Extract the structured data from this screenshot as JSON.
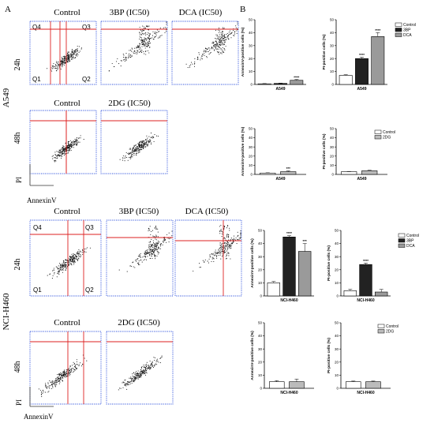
{
  "panel_letters": [
    "A",
    "B"
  ],
  "a549": {
    "cell_line": "A549",
    "row24": {
      "time": "24h",
      "plots": [
        "Control",
        "3BP (IC50)",
        "DCA (IC50)"
      ]
    },
    "row48": {
      "time": "48h",
      "plots": [
        "Control",
        "2DG (IC50)"
      ]
    },
    "quadrants": [
      "Q4",
      "Q3",
      "Q1",
      "Q2"
    ],
    "y_axis": "PI",
    "x_axis": "AnnexinV"
  },
  "h460": {
    "cell_line": "NCI-H460",
    "row24": {
      "time": "24h",
      "plots": [
        "Control",
        "3BP (IC50)",
        "DCA (IC50)"
      ]
    },
    "row48": {
      "time": "48h",
      "plots": [
        "Control",
        "2DG (IC50)"
      ]
    },
    "quadrants": [
      "Q4",
      "Q3",
      "Q1",
      "Q2"
    ],
    "y_axis": "PI",
    "x_axis": "AnnexinV"
  },
  "chart_data": [
    {
      "type": "bar",
      "id": "a549-24h-annexin",
      "categories": [
        "Control",
        "3BP",
        "DCA"
      ],
      "values": [
        0.5,
        0.8,
        3.2
      ],
      "errors": [
        0.2,
        0.2,
        0.6
      ],
      "significance": [
        "",
        "",
        "****"
      ],
      "xlabel": "A549",
      "ylabel": "AnnexinV-positive cells (%)",
      "ylim": [
        0,
        50
      ],
      "yticks": [
        0,
        10,
        20,
        30,
        40,
        50
      ],
      "colors": [
        "#ffffff",
        "#222222",
        "#9a9a9a"
      ],
      "grid": false
    },
    {
      "type": "bar",
      "id": "a549-24h-pi",
      "categories": [
        "Control",
        "3BP",
        "DCA"
      ],
      "values": [
        7,
        20,
        37
      ],
      "errors": [
        0.5,
        1,
        3
      ],
      "significance": [
        "",
        "****",
        "****"
      ],
      "xlabel": "A549",
      "ylabel": "PI-positive cells (%)",
      "ylim": [
        0,
        50
      ],
      "yticks": [
        0,
        10,
        20,
        30,
        40,
        50
      ],
      "colors": [
        "#ffffff",
        "#222222",
        "#9a9a9a"
      ],
      "legend": [
        "Control",
        "3BP",
        "DCA"
      ],
      "legend_position": "right",
      "grid": false
    },
    {
      "type": "bar",
      "id": "a549-48h-annexin",
      "categories": [
        "Control",
        "2DG"
      ],
      "values": [
        1.5,
        3
      ],
      "errors": [
        0.3,
        0.8
      ],
      "significance": [
        "",
        "***"
      ],
      "xlabel": "A549",
      "ylabel": "AnnexinV-positive cells (%)",
      "ylim": [
        0,
        50
      ],
      "yticks": [
        0,
        10,
        20,
        30,
        40,
        50
      ],
      "colors": [
        "#ffffff",
        "#bbbbbb"
      ],
      "grid": false
    },
    {
      "type": "bar",
      "id": "a549-48h-pi",
      "categories": [
        "Control",
        "2DG"
      ],
      "values": [
        3,
        4
      ],
      "errors": [
        0.3,
        0.5
      ],
      "significance": [
        "",
        ""
      ],
      "xlabel": "A549",
      "ylabel": "PI-positive cells (%)",
      "ylim": [
        0,
        50
      ],
      "yticks": [
        0,
        10,
        20,
        30,
        40,
        50
      ],
      "colors": [
        "#ffffff",
        "#bbbbbb"
      ],
      "legend": [
        "Control",
        "2DG"
      ],
      "legend_position": "left",
      "grid": false
    },
    {
      "type": "bar",
      "id": "h460-24h-annexin",
      "categories": [
        "Control",
        "3BP",
        "DCA"
      ],
      "values": [
        10,
        45,
        34
      ],
      "errors": [
        1,
        1,
        6
      ],
      "significance": [
        "",
        "****",
        "***"
      ],
      "xlabel": "NCI-H460",
      "ylabel": "AnnexinV-positive cells (%)",
      "ylim": [
        0,
        50
      ],
      "yticks": [
        0,
        10,
        20,
        30,
        40,
        50
      ],
      "colors": [
        "#ffffff",
        "#222222",
        "#9a9a9a"
      ],
      "grid": false
    },
    {
      "type": "bar",
      "id": "h460-24h-pi",
      "categories": [
        "Control",
        "3BP",
        "DCA"
      ],
      "values": [
        4,
        24,
        3
      ],
      "errors": [
        1,
        1,
        2
      ],
      "significance": [
        "",
        "****",
        ""
      ],
      "xlabel": "NCI-H460",
      "ylabel": "PI-positive cells (%)",
      "ylim": [
        0,
        50
      ],
      "yticks": [
        0,
        10,
        20,
        30,
        40,
        50
      ],
      "colors": [
        "#ffffff",
        "#222222",
        "#9a9a9a"
      ],
      "legend": [
        "Control",
        "3BP",
        "DCA"
      ],
      "legend_position": "right",
      "grid": false
    },
    {
      "type": "bar",
      "id": "h460-48h-annexin",
      "categories": [
        "Control",
        "2DG"
      ],
      "values": [
        5,
        5
      ],
      "errors": [
        0.8,
        2
      ],
      "significance": [
        "",
        ""
      ],
      "xlabel": "NCI-H460",
      "ylabel": "AnnexinV-positive cells (%)",
      "ylim": [
        0,
        50
      ],
      "yticks": [
        0,
        10,
        20,
        30,
        40,
        50
      ],
      "colors": [
        "#ffffff",
        "#bbbbbb"
      ],
      "grid": false
    },
    {
      "type": "bar",
      "id": "h460-48h-pi",
      "categories": [
        "Control",
        "2DG"
      ],
      "values": [
        5,
        5
      ],
      "errors": [
        0.5,
        0.5
      ],
      "significance": [
        "",
        ""
      ],
      "xlabel": "NCI-H460",
      "ylabel": "PI-positive cells (%)",
      "ylim": [
        0,
        50
      ],
      "yticks": [
        0,
        10,
        20,
        30,
        40,
        50
      ],
      "colors": [
        "#ffffff",
        "#bbbbbb"
      ],
      "legend": [
        "Control",
        "2DG"
      ],
      "legend_position": "left",
      "grid": false
    }
  ]
}
